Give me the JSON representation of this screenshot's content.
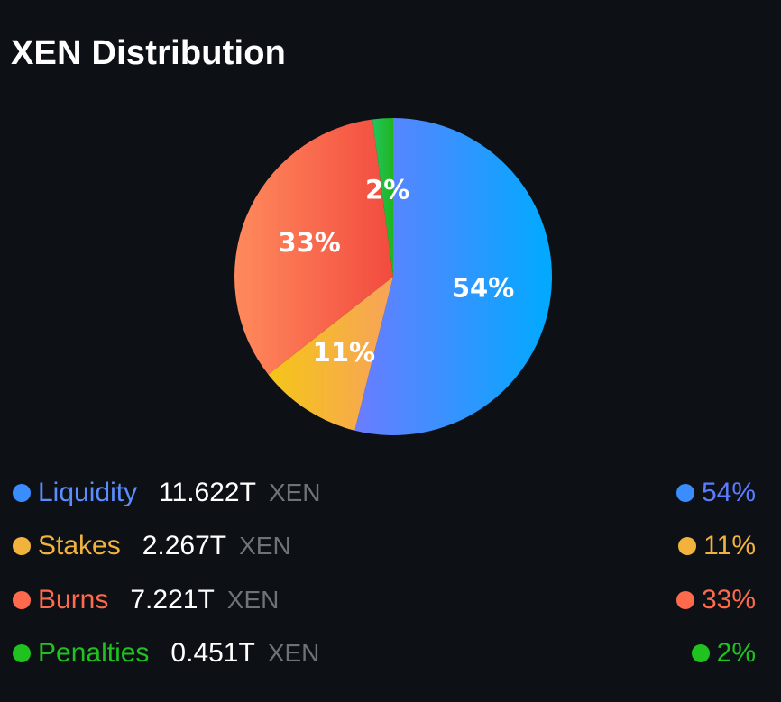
{
  "title": "XEN Distribution",
  "chart_data": {
    "type": "pie",
    "title": "XEN Distribution",
    "slices": [
      {
        "name": "Liquidity",
        "value": 11.622,
        "pct_label": "54%",
        "gradient": [
          "#6b7cff",
          "#00aaff"
        ],
        "color": "#3a8dff"
      },
      {
        "name": "Stakes",
        "value": 2.267,
        "pct_label": "11%",
        "gradient": [
          "#f5c518",
          "#f7a35a"
        ],
        "color": "#f2b33d"
      },
      {
        "name": "Burns",
        "value": 7.221,
        "pct_label": "33%",
        "gradient": [
          "#ff8a5c",
          "#f24b3f"
        ],
        "color": "#ff6a4d"
      },
      {
        "name": "Penalties",
        "value": 0.451,
        "pct_label": "2%",
        "gradient": [
          "#22c55e",
          "#1fb51f"
        ],
        "color": "#1fc21f"
      }
    ]
  },
  "legend": [
    {
      "name": "Liquidity",
      "amount": "11.622T",
      "unit": "XEN",
      "pct": "54%",
      "name_color": "#5b8dff",
      "pct_color": "#5b7cff",
      "dot_color": "#3a8dff"
    },
    {
      "name": "Stakes",
      "amount": "2.267T",
      "unit": "XEN",
      "pct": "11%",
      "name_color": "#f2b33d",
      "pct_color": "#f2b33d",
      "dot_color": "#f2b33d"
    },
    {
      "name": "Burns",
      "amount": "7.221T",
      "unit": "XEN",
      "pct": "33%",
      "name_color": "#ff6a4d",
      "pct_color": "#ff6a4d",
      "dot_color": "#ff6a4d"
    },
    {
      "name": "Penalties",
      "amount": "0.451T",
      "unit": "XEN",
      "pct": "2%",
      "name_color": "#1fc21f",
      "pct_color": "#1fc21f",
      "dot_color": "#1fc21f"
    }
  ]
}
